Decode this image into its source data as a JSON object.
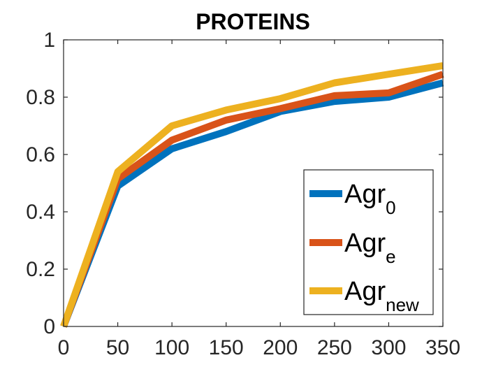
{
  "chart_data": {
    "type": "line",
    "title": "PROTEINS",
    "xlabel": "",
    "ylabel": "",
    "x": [
      0,
      50,
      100,
      150,
      200,
      250,
      300,
      350
    ],
    "xlim": [
      0,
      350
    ],
    "ylim": [
      0,
      1
    ],
    "xticks": [
      0,
      50,
      100,
      150,
      200,
      250,
      300,
      350
    ],
    "yticks": [
      0,
      0.2,
      0.4,
      0.6,
      0.8,
      1
    ],
    "ytick_labels": [
      "0",
      "0.2",
      "0.4",
      "0.6",
      "0.8",
      "1"
    ],
    "grid": false,
    "legend_position": "bottom-right",
    "series": [
      {
        "name": "Agr",
        "subscript": "0",
        "color": "#0072BD",
        "values": [
          0,
          0.49,
          0.62,
          0.68,
          0.75,
          0.785,
          0.8,
          0.85
        ]
      },
      {
        "name": "Agr",
        "subscript": "e",
        "color": "#D95319",
        "values": [
          0,
          0.515,
          0.65,
          0.72,
          0.76,
          0.805,
          0.815,
          0.88
        ]
      },
      {
        "name": "Agr",
        "subscript": "new",
        "color": "#EDB120",
        "values": [
          0,
          0.54,
          0.7,
          0.755,
          0.795,
          0.85,
          0.88,
          0.91
        ]
      }
    ]
  }
}
